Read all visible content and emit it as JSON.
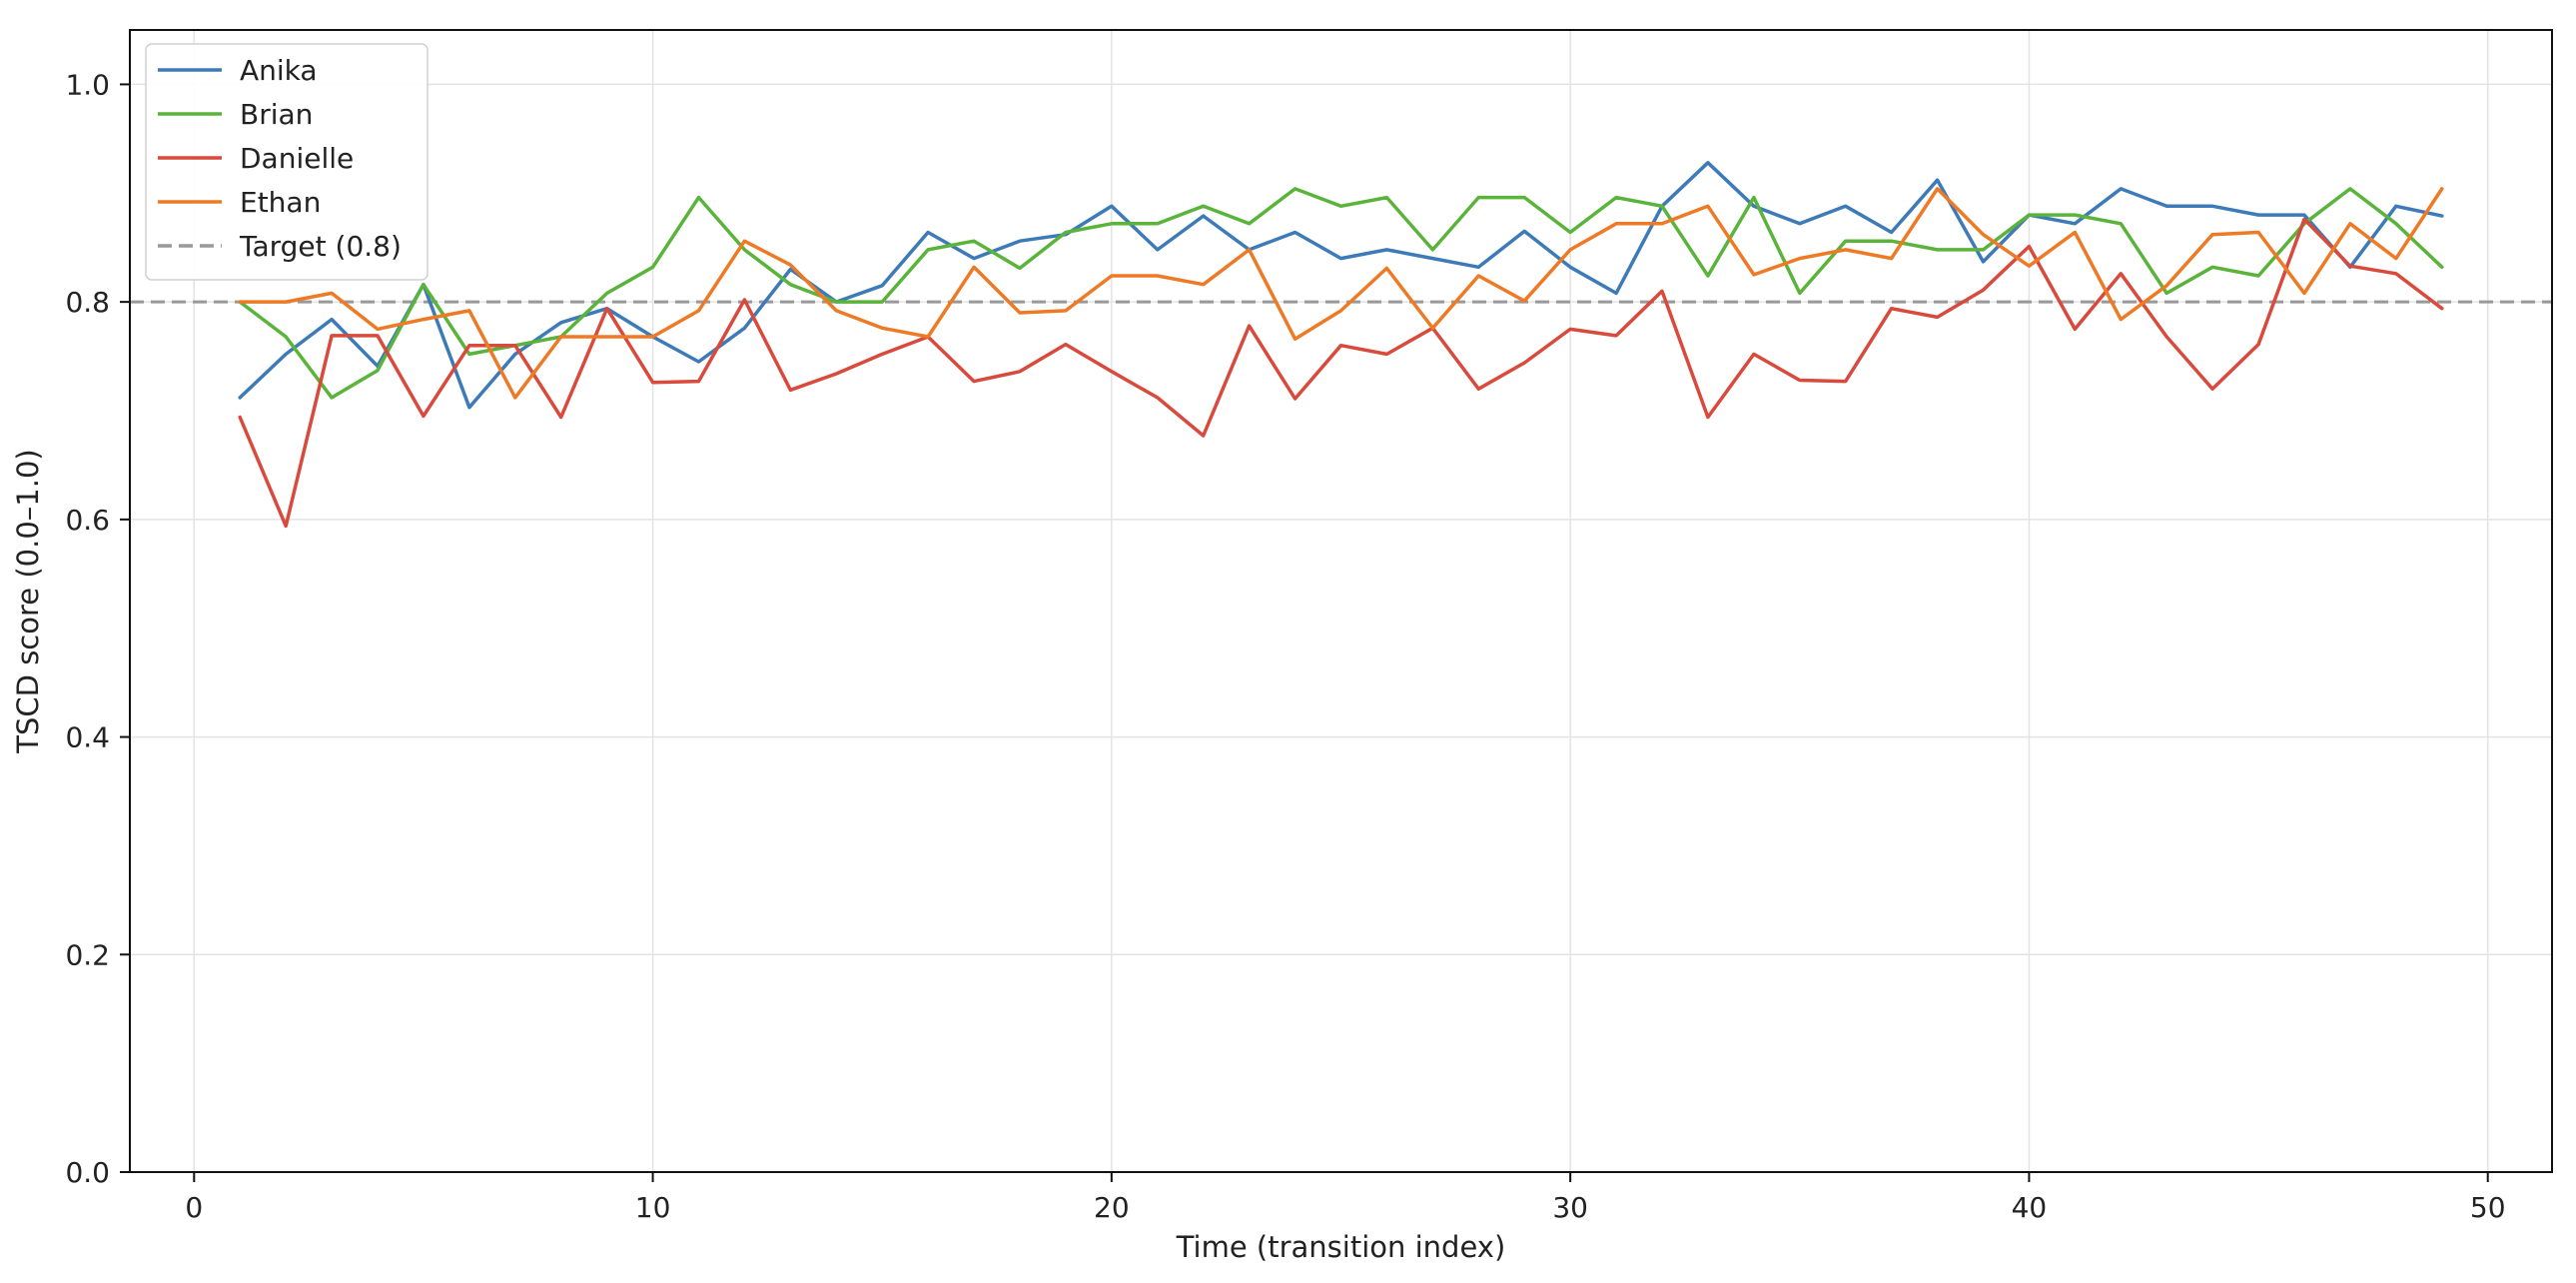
{
  "chart_data": {
    "type": "line",
    "title": "",
    "xlabel": "Time (transition index)",
    "ylabel": "TSCD score (0.0–1.0)",
    "xlim": [
      -1.4,
      51.4
    ],
    "ylim": [
      0.0,
      1.05
    ],
    "xticks": [
      0,
      10,
      20,
      30,
      40,
      50
    ],
    "yticks": [
      0.0,
      0.2,
      0.4,
      0.6,
      0.8,
      1.0
    ],
    "xtick_labels": [
      "0",
      "10",
      "20",
      "30",
      "40",
      "50"
    ],
    "ytick_labels": [
      "0.0",
      "0.2",
      "0.4",
      "0.6",
      "0.8",
      "1.0"
    ],
    "grid": true,
    "legend_position": "top-left",
    "x": [
      1,
      2,
      3,
      4,
      5,
      6,
      7,
      8,
      9,
      10,
      11,
      12,
      13,
      14,
      15,
      16,
      17,
      18,
      19,
      20,
      21,
      22,
      23,
      24,
      25,
      26,
      27,
      28,
      29,
      30,
      31,
      32,
      33,
      34,
      35,
      36,
      37,
      38,
      39,
      40,
      41,
      42,
      43,
      44,
      45,
      46,
      47,
      48,
      49
    ],
    "series": [
      {
        "name": "Anika",
        "color": "#3d7ab8",
        "values": [
          0.712,
          0.752,
          0.784,
          0.741,
          0.816,
          0.703,
          0.752,
          0.781,
          0.794,
          0.768,
          0.745,
          0.776,
          0.83,
          0.8,
          0.815,
          0.864,
          0.84,
          0.856,
          0.862,
          0.888,
          0.848,
          0.879,
          0.848,
          0.864,
          0.84,
          0.848,
          0.84,
          0.832,
          0.865,
          0.832,
          0.808,
          0.888,
          0.928,
          0.888,
          0.872,
          0.888,
          0.864,
          0.912,
          0.837,
          0.88,
          0.872,
          0.904,
          0.888,
          0.888,
          0.88,
          0.88,
          0.832,
          0.888,
          0.879
        ]
      },
      {
        "name": "Brian",
        "color": "#5ab33a",
        "values": [
          0.8,
          0.768,
          0.712,
          0.737,
          0.816,
          0.752,
          0.76,
          0.768,
          0.808,
          0.832,
          0.896,
          0.848,
          0.816,
          0.8,
          0.8,
          0.848,
          0.856,
          0.831,
          0.864,
          0.872,
          0.872,
          0.888,
          0.872,
          0.904,
          0.888,
          0.896,
          0.848,
          0.896,
          0.896,
          0.864,
          0.896,
          0.888,
          0.824,
          0.896,
          0.808,
          0.856,
          0.856,
          0.848,
          0.848,
          0.88,
          0.88,
          0.872,
          0.808,
          0.832,
          0.824,
          0.872,
          0.904,
          0.872,
          0.832
        ]
      },
      {
        "name": "Danielle",
        "color": "#d94a3d",
        "values": [
          0.694,
          0.594,
          0.769,
          0.769,
          0.695,
          0.76,
          0.76,
          0.694,
          0.794,
          0.726,
          0.727,
          0.802,
          0.719,
          0.734,
          0.752,
          0.768,
          0.727,
          0.736,
          0.761,
          0.736,
          0.712,
          0.677,
          0.778,
          0.711,
          0.76,
          0.752,
          0.776,
          0.72,
          0.744,
          0.775,
          0.769,
          0.81,
          0.694,
          0.752,
          0.728,
          0.727,
          0.794,
          0.786,
          0.811,
          0.851,
          0.775,
          0.826,
          0.768,
          0.72,
          0.761,
          0.876,
          0.833,
          0.826,
          0.794
        ]
      },
      {
        "name": "Ethan",
        "color": "#ee7a25",
        "values": [
          0.8,
          0.8,
          0.808,
          0.775,
          0.784,
          0.792,
          0.712,
          0.768,
          0.768,
          0.768,
          0.792,
          0.856,
          0.834,
          0.792,
          0.776,
          0.768,
          0.832,
          0.79,
          0.792,
          0.824,
          0.824,
          0.816,
          0.848,
          0.766,
          0.792,
          0.831,
          0.776,
          0.824,
          0.801,
          0.848,
          0.872,
          0.872,
          0.888,
          0.825,
          0.84,
          0.848,
          0.84,
          0.904,
          0.862,
          0.833,
          0.864,
          0.784,
          0.815,
          0.862,
          0.864,
          0.808,
          0.872,
          0.84,
          0.904
        ]
      }
    ],
    "reference_lines": [
      {
        "name": "Target (0.8)",
        "value": 0.8,
        "color": "#999999",
        "style": "dashed"
      }
    ]
  }
}
